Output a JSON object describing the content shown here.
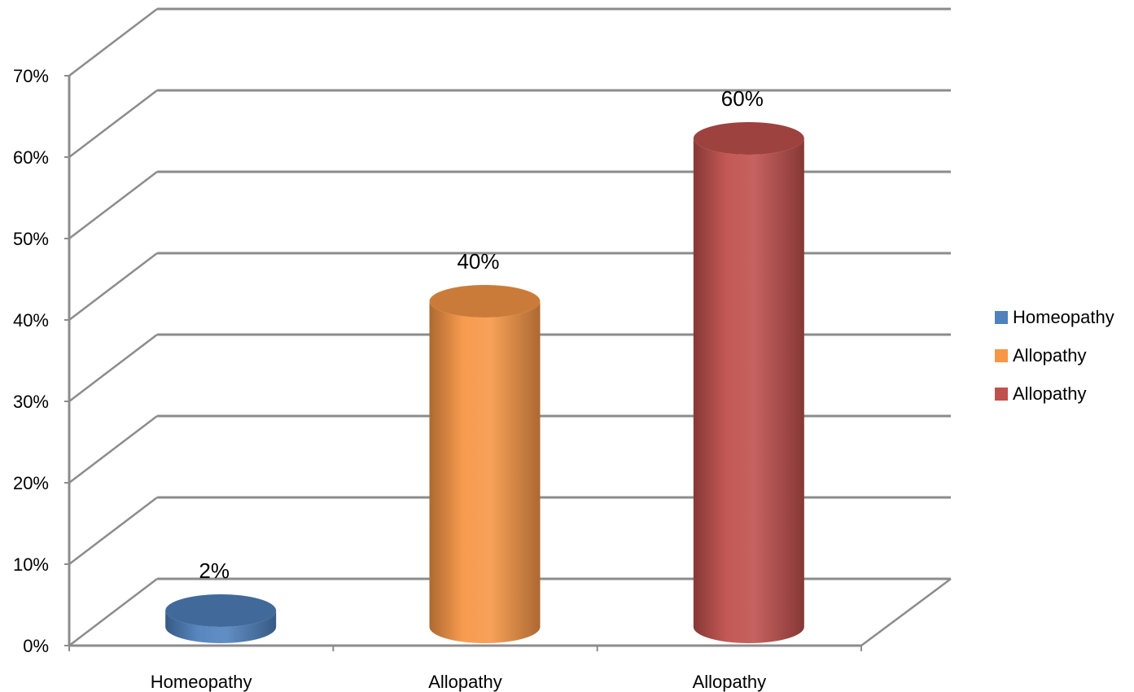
{
  "chart_data": {
    "type": "bar",
    "style": "3d-cylinder",
    "categories": [
      "Homeopathy",
      "Allopathy",
      "Allopathy"
    ],
    "values": [
      2,
      40,
      60
    ],
    "value_labels": [
      "2%",
      "40%",
      "60%"
    ],
    "colors": [
      "#4F81BD",
      "#F79646",
      "#C0504D"
    ],
    "ylim": [
      0,
      70
    ],
    "y_ticks": [
      0,
      10,
      20,
      30,
      40,
      50,
      60,
      70
    ],
    "y_tick_labels": [
      "0%",
      "10%",
      "20%",
      "30%",
      "40%",
      "50%",
      "60%",
      "70%"
    ],
    "grid": true,
    "legend": {
      "position": "right",
      "entries": [
        "Homeopathy",
        "Allopathy",
        "Allopathy"
      ]
    },
    "title": "",
    "xlabel": "",
    "ylabel": ""
  }
}
